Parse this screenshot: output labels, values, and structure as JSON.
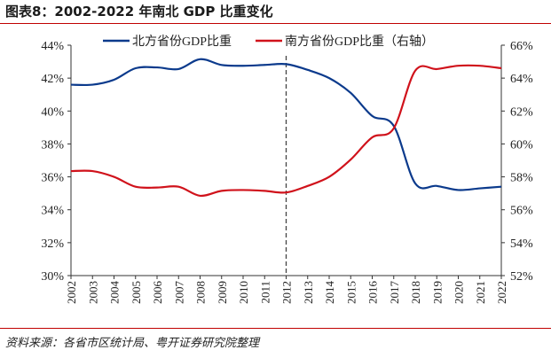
{
  "title": "图表8：2002-2022 年南北 GDP 比重变化",
  "source": "资料来源：各省市区统计局、粤开证券研究院整理",
  "chart_data": {
    "type": "line",
    "categories": [
      "2002",
      "2003",
      "2004",
      "2005",
      "2006",
      "2007",
      "2008",
      "2009",
      "2010",
      "2011",
      "2012",
      "2013",
      "2014",
      "2015",
      "2016",
      "2017",
      "2018",
      "2019",
      "2020",
      "2021",
      "2022"
    ],
    "series": [
      {
        "name": "北方省份GDP比重",
        "axis": "left",
        "color": "#0b3a8c",
        "values": [
          41.6,
          41.6,
          41.9,
          42.6,
          42.65,
          42.55,
          43.15,
          42.8,
          42.75,
          42.8,
          42.85,
          42.5,
          42.0,
          41.1,
          39.7,
          39.1,
          35.6,
          35.45,
          35.2,
          35.3,
          35.4
        ]
      },
      {
        "name": "南方省份GDP比重（右轴）",
        "axis": "right",
        "color": "#d0121b",
        "values": [
          58.35,
          58.35,
          58.0,
          57.4,
          57.35,
          57.4,
          56.85,
          57.15,
          57.2,
          57.15,
          57.05,
          57.45,
          58.0,
          59.05,
          60.4,
          60.95,
          64.45,
          64.55,
          64.75,
          64.75,
          64.6
        ]
      }
    ],
    "left_axis": {
      "ylim": [
        30,
        44
      ],
      "ticks": [
        "30%",
        "32%",
        "34%",
        "36%",
        "38%",
        "40%",
        "42%",
        "44%"
      ]
    },
    "right_axis": {
      "ylim": [
        52,
        66
      ],
      "ticks": [
        "52%",
        "54%",
        "56%",
        "58%",
        "60%",
        "62%",
        "64%",
        "66%"
      ]
    },
    "vertical_marker": "2012",
    "legend": "top",
    "grid": false
  }
}
